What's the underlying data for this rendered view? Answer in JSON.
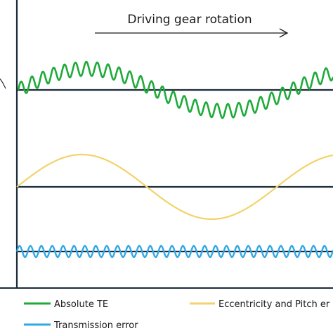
{
  "header_label": "Driving gear rotation",
  "legend": {
    "items": [
      {
        "label": "Absolute TE",
        "color": "#1faa3a"
      },
      {
        "label": "Eccentricity and Pitch er",
        "color": "#f2d36b"
      },
      {
        "label": "Transmission error",
        "color": "#2ea8e6"
      }
    ]
  },
  "colors": {
    "axis": "#1c2b3a",
    "absolute_te": "#1faa3a",
    "eccentricity": "#f2d36b",
    "transmission_error": "#2ea8e6"
  }
}
